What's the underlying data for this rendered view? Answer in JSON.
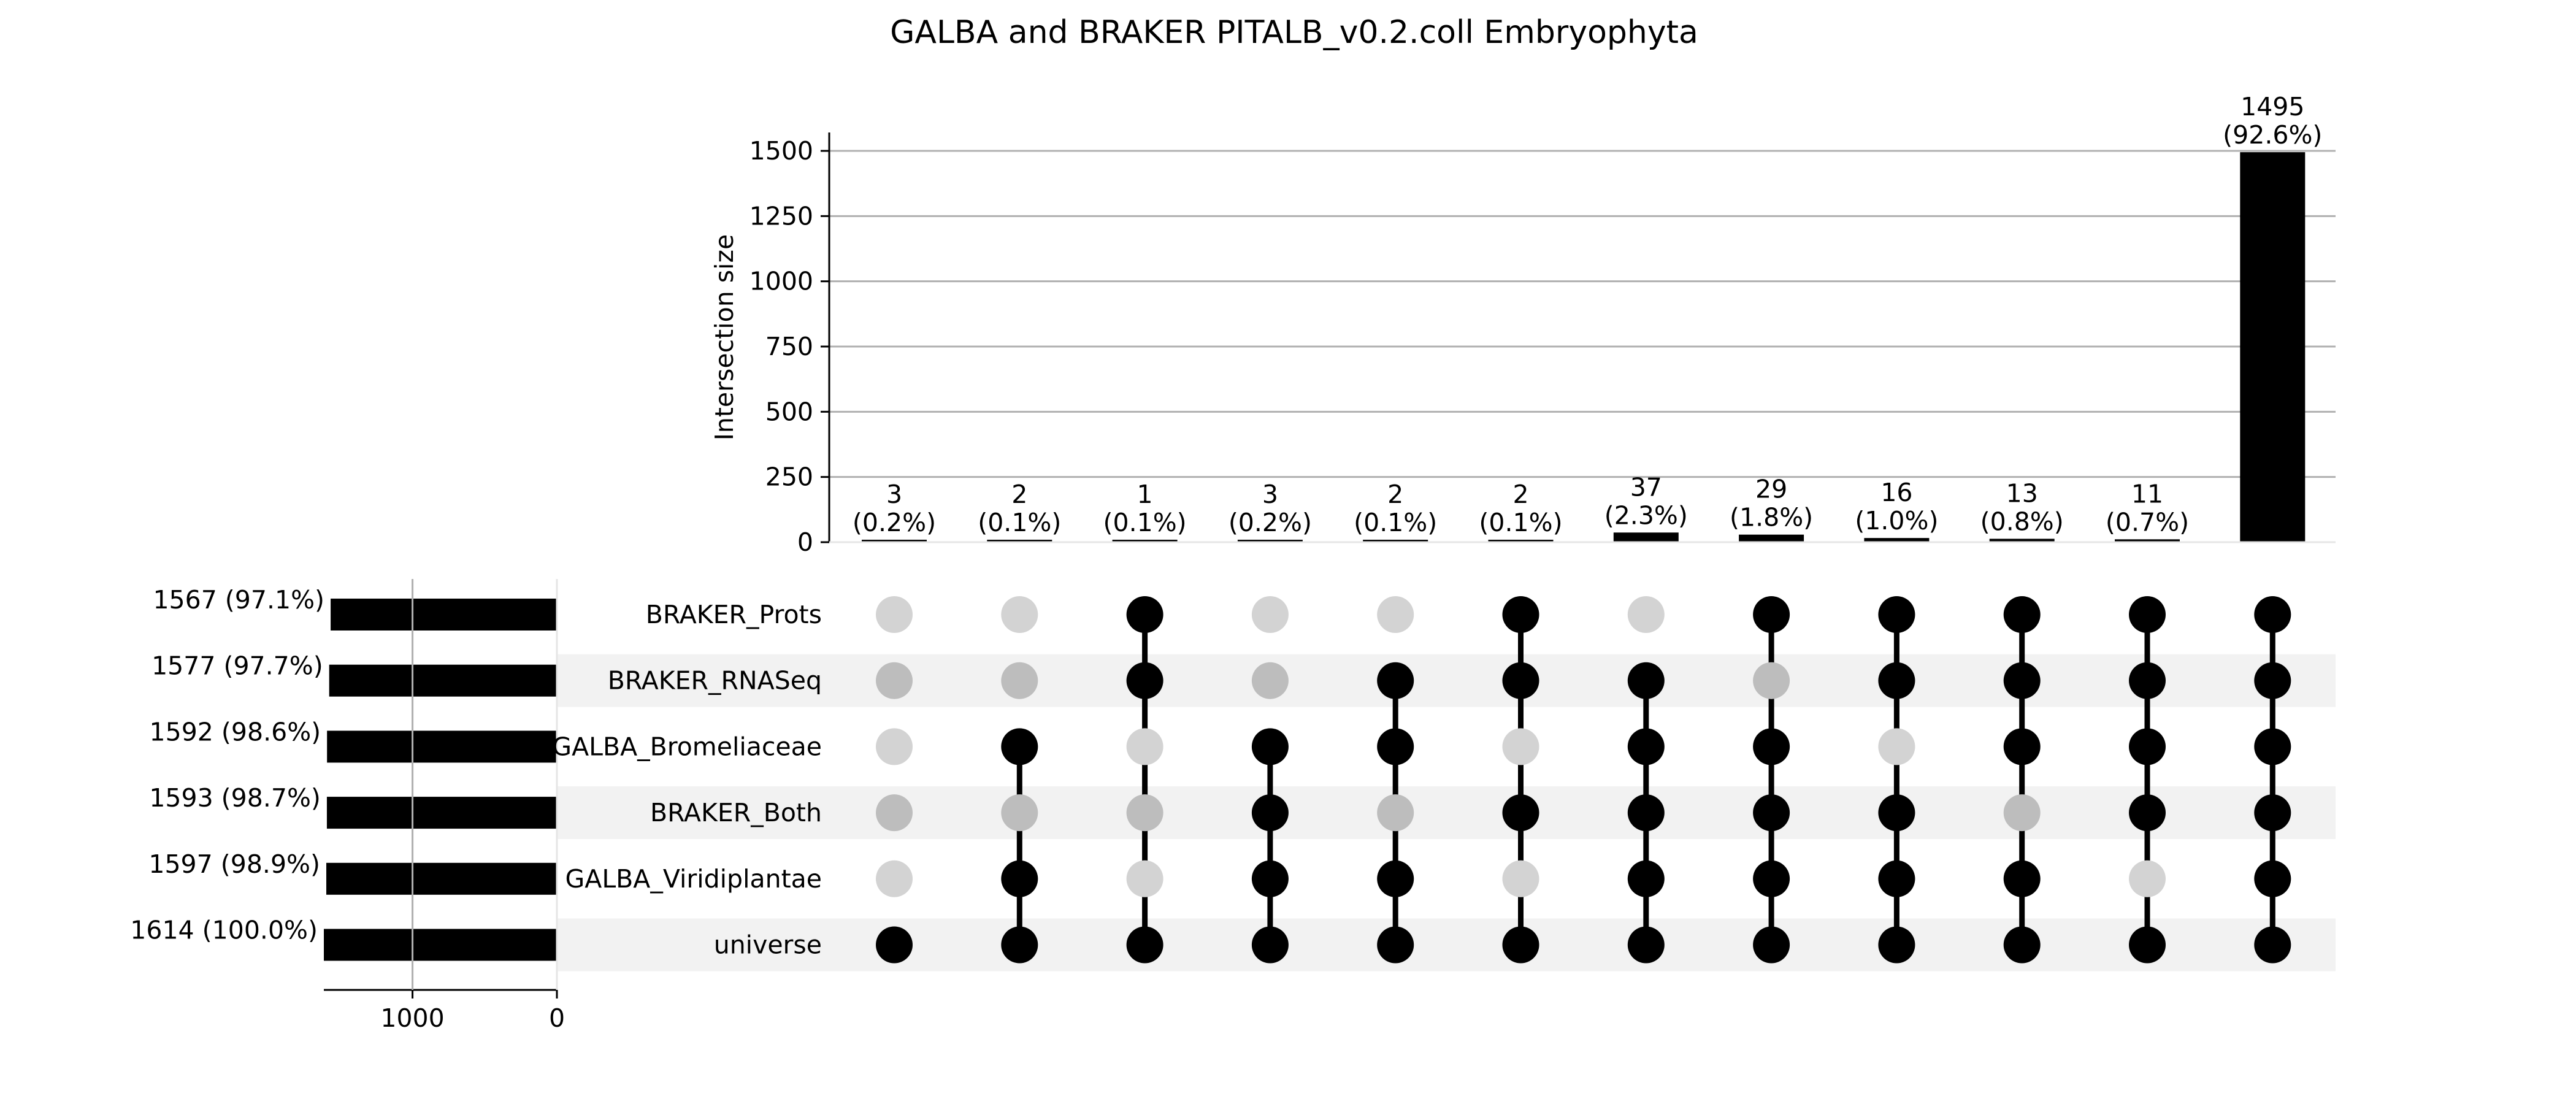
{
  "chart_data": {
    "type": "bar",
    "title": "GALBA and BRAKER PITALB_v0.2.coll Embryophyta",
    "ylabel": "Intersection size",
    "ylim": [
      0,
      1650
    ],
    "y_ticks": [
      0,
      250,
      500,
      750,
      1000,
      1250,
      1500
    ],
    "grid": true,
    "sets": [
      {
        "name": "BRAKER_Prots",
        "size": 1567,
        "label": "1567 (97.1%)"
      },
      {
        "name": "BRAKER_RNASeq",
        "size": 1577,
        "label": "1577 (97.7%)"
      },
      {
        "name": "GALBA_Bromeliaceae",
        "size": 1592,
        "label": "1592 (98.6%)"
      },
      {
        "name": "BRAKER_Both",
        "size": 1593,
        "label": "1593 (98.7%)"
      },
      {
        "name": "GALBA_Viridiplantae",
        "size": 1597,
        "label": "1597 (98.9%)"
      },
      {
        "name": "universe",
        "size": 1614,
        "label": "1614 (100.0%)"
      }
    ],
    "set_size_axis": {
      "ticks": [
        1000,
        0
      ],
      "tick_labels": [
        "1000",
        "0"
      ],
      "max": 1614
    },
    "intersections": [
      {
        "value": 3,
        "label": "3",
        "pct": "(0.2%)",
        "members": [
          5
        ]
      },
      {
        "value": 2,
        "label": "2",
        "pct": "(0.1%)",
        "members": [
          2,
          4,
          5
        ]
      },
      {
        "value": 1,
        "label": "1",
        "pct": "(0.1%)",
        "members": [
          0,
          1,
          5
        ]
      },
      {
        "value": 3,
        "label": "3",
        "pct": "(0.2%)",
        "members": [
          2,
          3,
          4,
          5
        ]
      },
      {
        "value": 2,
        "label": "2",
        "pct": "(0.1%)",
        "members": [
          1,
          2,
          4,
          5
        ]
      },
      {
        "value": 2,
        "label": "2",
        "pct": "(0.1%)",
        "members": [
          0,
          1,
          3,
          5
        ]
      },
      {
        "value": 37,
        "label": "37",
        "pct": "(2.3%)",
        "members": [
          1,
          2,
          3,
          4,
          5
        ]
      },
      {
        "value": 29,
        "label": "29",
        "pct": "(1.8%)",
        "members": [
          0,
          2,
          3,
          4,
          5
        ]
      },
      {
        "value": 16,
        "label": "16",
        "pct": "(1.0%)",
        "members": [
          0,
          1,
          3,
          4,
          5
        ]
      },
      {
        "value": 13,
        "label": "13",
        "pct": "(0.8%)",
        "members": [
          0,
          1,
          2,
          4,
          5
        ]
      },
      {
        "value": 11,
        "label": "11",
        "pct": "(0.7%)",
        "members": [
          0,
          1,
          2,
          3,
          5
        ]
      },
      {
        "value": 1495,
        "label": "1495",
        "pct": "(92.6%)",
        "members": [
          0,
          1,
          2,
          3,
          4,
          5
        ]
      }
    ],
    "colors": {
      "bar": "#000000",
      "dot_active": "#000000",
      "dot_inactive_light": "#d3d3d3",
      "dot_inactive_dark": "#bdbdbd",
      "stripe": "#f2f2f2",
      "grid": "#b0b0b0"
    }
  }
}
